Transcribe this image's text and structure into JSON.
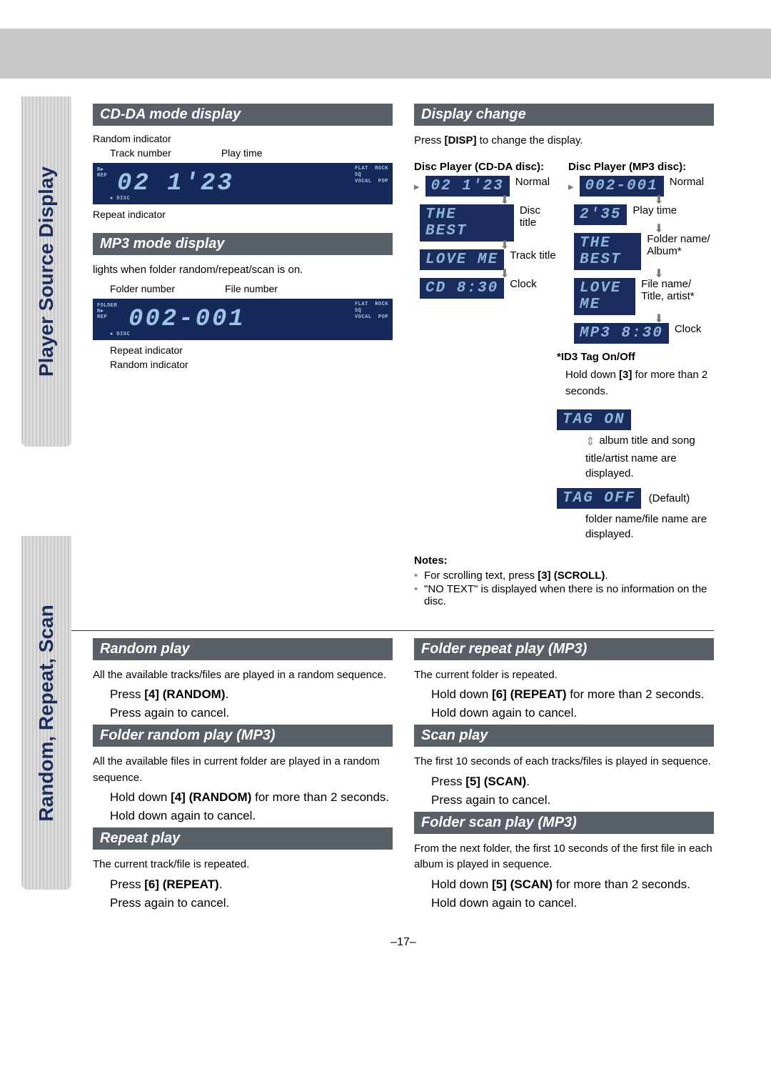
{
  "page_number": "–17–",
  "gray_band_color": "#c8c8c8",
  "title_bar_bg": "#5a6068",
  "lcd_bg": "#1a2b5e",
  "lcd_fg": "#8fb5d6",
  "side_tabs": {
    "tab1": "Player Source Display",
    "tab2": "Random, Repeat, Scan"
  },
  "sectionA": {
    "left": {
      "cdda_title": "CD-DA mode display",
      "cdda_callouts": {
        "random": "Random indicator",
        "track": "Track number",
        "playtime": "Play time",
        "repeat": "Repeat indicator"
      },
      "cdda_lcd": {
        "side_left": "R►\nREP",
        "main": "02    1'23",
        "badges": "FLAT  ROCK\nSQ\nVOCAL  POP",
        "disc": "● DISC"
      },
      "mp3_title": "MP3 mode display",
      "mp3_lead": "lights when folder random/repeat/scan is on.",
      "mp3_callouts": {
        "folder": "Folder number",
        "file": "File number",
        "repeat": "Repeat indicator",
        "random": "Random indicator"
      },
      "mp3_lcd": {
        "side_left": "FOLDER\nR►\nREP",
        "main": "002-001",
        "badges": "FLAT  ROCK\nSQ\nVOCAL  POP",
        "disc": "● DISC"
      }
    },
    "right": {
      "disp_title": "Display change",
      "disp_lead_pre": "Press ",
      "disp_lead_b": "[DISP]",
      "disp_lead_post": " to change the display.",
      "cdda_head": "Disc Player (CD-DA disc):",
      "mp3_head": "Disc Player (MP3 disc):",
      "cdda_seq": [
        {
          "lcd": "02    1'23",
          "label": "Normal"
        },
        {
          "lcd": "THE  BEST",
          "label": "Disc title"
        },
        {
          "lcd": "LOVE  ME",
          "label": "Track title"
        },
        {
          "lcd": "CD    8:30",
          "label": "Clock"
        }
      ],
      "mp3_seq": [
        {
          "lcd": "002-001",
          "label": "Normal"
        },
        {
          "lcd": "2'35",
          "label": "Play time"
        },
        {
          "lcd": "THE  BEST",
          "label": "Folder name/ Album*"
        },
        {
          "lcd": "LOVE  ME",
          "label": "File name/ Title, artist*"
        },
        {
          "lcd": "MP3  8:30",
          "label": "Clock"
        }
      ],
      "id3": {
        "head": "*ID3 Tag On/Off",
        "hold_pre": "Hold down ",
        "hold_b": "[3]",
        "hold_post": " for more than 2 seconds.",
        "tag_on": "TAG  ON",
        "tag_on_desc": "album title and song title/artist name are displayed.",
        "tag_off": "TAG  OFF",
        "tag_off_default": "(Default)",
        "tag_off_desc": "folder name/file name are displayed."
      },
      "notes_title": "Notes:",
      "notes": [
        {
          "pre": "For scrolling text, press ",
          "b": "[3] (SCROLL)",
          "post": "."
        },
        {
          "pre": "\"NO TEXT\" is displayed when there is no information on the disc.",
          "b": "",
          "post": ""
        }
      ]
    }
  },
  "sectionB": {
    "left": {
      "random_title": "Random play",
      "random_desc": "All the available tracks/files are played in a random sequence.",
      "random_press_pre": "Press ",
      "random_press_b": "[4] (RANDOM)",
      "random_press_post": ".",
      "random_cancel": "Press again to cancel.",
      "frandom_title": "Folder random play (MP3)",
      "frandom_desc": "All the available files in current folder are played in a random sequence.",
      "frandom_press_pre": "Hold down ",
      "frandom_press_b": "[4] (RANDOM)",
      "frandom_press_post": " for more than 2 seconds.",
      "frandom_cancel": "Hold down again to cancel.",
      "repeat_title": "Repeat play",
      "repeat_desc": "The current track/file is repeated.",
      "repeat_press_pre": "Press ",
      "repeat_press_b": "[6] (REPEAT)",
      "repeat_press_post": ".",
      "repeat_cancel": "Press again to cancel."
    },
    "right": {
      "frepeat_title": "Folder repeat play (MP3)",
      "frepeat_desc": "The current folder is repeated.",
      "frepeat_press_pre": "Hold down ",
      "frepeat_press_b": "[6] (REPEAT)",
      "frepeat_press_post": " for more than 2 seconds.",
      "frepeat_cancel": "Hold down again to cancel.",
      "scan_title": "Scan play",
      "scan_desc": "The first 10 seconds of each tracks/files is played in sequence.",
      "scan_press_pre": "Press ",
      "scan_press_b": "[5] (SCAN)",
      "scan_press_post": ".",
      "scan_cancel": "Press again to cancel.",
      "fscan_title": "Folder scan play (MP3)",
      "fscan_desc": "From the next folder, the first 10 seconds of the first file in each album is played in sequence.",
      "fscan_press_pre": "Hold down ",
      "fscan_press_b": "[5] (SCAN)",
      "fscan_press_post": " for more than 2 seconds.",
      "fscan_cancel": "Hold down again to cancel."
    }
  }
}
